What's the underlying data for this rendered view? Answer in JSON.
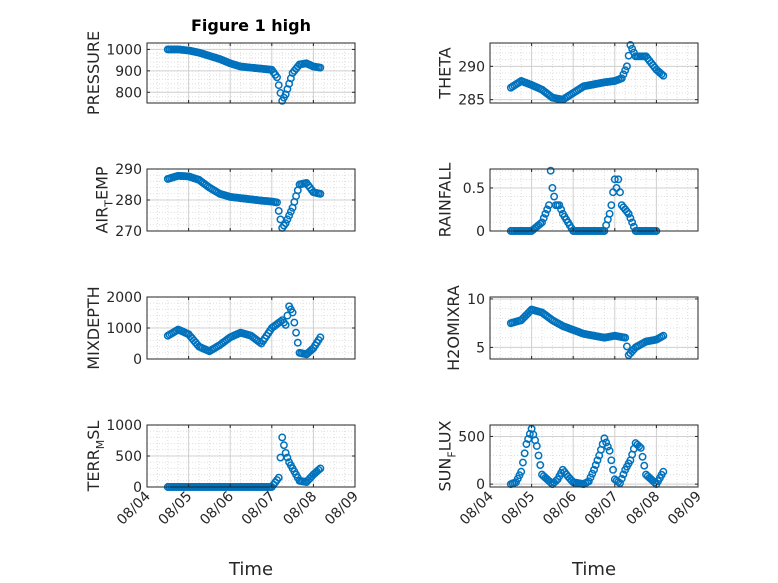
{
  "chart_data": [
    {
      "type": "scatter",
      "title": "Figure 1 high",
      "ylabel": "PRESSURE",
      "ylim": [
        750,
        1030
      ],
      "yticks": [
        800,
        900,
        1000
      ],
      "x": [
        "08/04 12:00",
        "08/04 18:00",
        "08/05 00:00",
        "08/05 06:00",
        "08/05 12:00",
        "08/05 18:00",
        "08/06 00:00",
        "08/06 06:00",
        "08/06 12:00",
        "08/06 18:00",
        "08/07 00:00",
        "08/07 03:00",
        "08/07 06:00",
        "08/07 08:00",
        "08/07 10:00",
        "08/07 12:00",
        "08/07 16:00",
        "08/07 20:00",
        "08/08 00:00",
        "08/08 04:00"
      ],
      "values": [
        1000,
        1000,
        995,
        985,
        970,
        955,
        935,
        920,
        915,
        910,
        905,
        870,
        760,
        790,
        840,
        890,
        930,
        935,
        920,
        915
      ]
    },
    {
      "type": "scatter",
      "title": "",
      "ylabel": "THETA",
      "ylim": [
        284.5,
        293.5
      ],
      "yticks": [
        285,
        290
      ],
      "x": [
        "08/04 12:00",
        "08/04 18:00",
        "08/05 00:00",
        "08/05 06:00",
        "08/05 12:00",
        "08/05 18:00",
        "08/06 00:00",
        "08/06 06:00",
        "08/06 12:00",
        "08/06 18:00",
        "08/07 00:00",
        "08/07 04:00",
        "08/07 07:00",
        "08/07 09:00",
        "08/07 12:00",
        "08/07 18:00",
        "08/08 00:00",
        "08/08 04:00"
      ],
      "values": [
        286.8,
        287.8,
        287.2,
        286.5,
        285.3,
        285.0,
        286.0,
        287.0,
        287.3,
        287.6,
        287.8,
        288.2,
        290.0,
        293.2,
        291.5,
        291.5,
        289.5,
        288.6
      ]
    },
    {
      "type": "scatter",
      "title": "",
      "ylabel": "AIR_TEMP",
      "ylim": [
        270,
        290
      ],
      "yticks": [
        270,
        280,
        290
      ],
      "x": [
        "08/04 12:00",
        "08/04 18:00",
        "08/05 00:00",
        "08/05 06:00",
        "08/05 12:00",
        "08/05 18:00",
        "08/06 00:00",
        "08/06 06:00",
        "08/06 12:00",
        "08/06 18:00",
        "08/07 00:00",
        "08/07 03:00",
        "08/07 06:00",
        "08/07 08:00",
        "08/07 12:00",
        "08/07 16:00",
        "08/07 20:00",
        "08/08 00:00",
        "08/08 04:00"
      ],
      "values": [
        286.8,
        287.8,
        287.6,
        286.5,
        284.0,
        282.0,
        281.0,
        280.6,
        280.2,
        279.8,
        279.5,
        279.2,
        271.0,
        272.5,
        277.5,
        285.0,
        285.5,
        282.5,
        282.0
      ]
    },
    {
      "type": "scatter",
      "title": "",
      "ylabel": "RAINFALL",
      "ylim": [
        0,
        0.72
      ],
      "yticks": [
        0,
        0.5
      ],
      "x": [
        "08/04 12:00",
        "08/05 00:00",
        "08/05 06:00",
        "08/05 08:00",
        "08/05 10:00",
        "08/05 11:00",
        "08/05 12:00",
        "08/05 14:00",
        "08/05 16:00",
        "08/05 18:00",
        "08/06 00:00",
        "08/06 18:00",
        "08/06 21:00",
        "08/06 22:00",
        "08/07 00:00",
        "08/07 01:00",
        "08/07 02:00",
        "08/07 04:00",
        "08/07 08:00",
        "08/07 12:00",
        "08/08 00:00"
      ],
      "values": [
        0,
        0,
        0.1,
        0.2,
        0.3,
        0.7,
        0.5,
        0.3,
        0.3,
        0.2,
        0,
        0,
        0.2,
        0.3,
        0.6,
        0.5,
        0.6,
        0.3,
        0.2,
        0,
        0
      ]
    },
    {
      "type": "scatter",
      "title": "",
      "ylabel": "MIXDEPTH",
      "ylim": [
        0,
        2000
      ],
      "yticks": [
        0,
        1000,
        2000
      ],
      "x": [
        "08/04 12:00",
        "08/04 18:00",
        "08/05 00:00",
        "08/05 06:00",
        "08/05 12:00",
        "08/05 18:00",
        "08/06 00:00",
        "08/06 06:00",
        "08/06 12:00",
        "08/06 18:00",
        "08/07 00:00",
        "08/07 06:00",
        "08/07 08:00",
        "08/07 10:00",
        "08/07 12:00",
        "08/07 16:00",
        "08/07 20:00",
        "08/08 00:00",
        "08/08 04:00"
      ],
      "values": [
        750,
        950,
        800,
        400,
        250,
        450,
        700,
        850,
        750,
        500,
        1000,
        1250,
        1100,
        1700,
        1500,
        200,
        150,
        350,
        700
      ]
    },
    {
      "type": "scatter",
      "title": "",
      "ylabel": "H2OMIXRA",
      "ylim": [
        3.8,
        10.2
      ],
      "yticks": [
        5,
        10
      ],
      "x": [
        "08/04 12:00",
        "08/04 18:00",
        "08/05 00:00",
        "08/05 06:00",
        "08/05 12:00",
        "08/05 18:00",
        "08/06 00:00",
        "08/06 06:00",
        "08/06 12:00",
        "08/06 18:00",
        "08/07 00:00",
        "08/07 06:00",
        "08/07 08:00",
        "08/07 12:00",
        "08/07 18:00",
        "08/08 00:00",
        "08/08 04:00"
      ],
      "values": [
        7.5,
        7.8,
        8.9,
        8.6,
        7.8,
        7.2,
        6.8,
        6.4,
        6.2,
        6.0,
        6.2,
        6.0,
        4.2,
        5.0,
        5.6,
        5.8,
        6.2
      ]
    },
    {
      "type": "scatter",
      "title": "",
      "ylabel": "TERR_MSL",
      "ylim": [
        0,
        1000
      ],
      "yticks": [
        0,
        500,
        1000
      ],
      "x": [
        "08/04 12:00",
        "08/05 00:00",
        "08/05 12:00",
        "08/06 00:00",
        "08/06 12:00",
        "08/07 00:00",
        "08/07 04:00",
        "08/07 06:00",
        "08/07 08:00",
        "08/07 10:00",
        "08/07 12:00",
        "08/07 16:00",
        "08/07 20:00",
        "08/08 00:00",
        "08/08 04:00"
      ],
      "values": [
        0,
        0,
        0,
        0,
        0,
        0,
        150,
        800,
        550,
        400,
        300,
        100,
        80,
        200,
        300
      ]
    },
    {
      "type": "scatter",
      "title": "",
      "ylabel": "SUN_FLUX",
      "ylim": [
        -30,
        620
      ],
      "yticks": [
        0,
        500
      ],
      "x": [
        "08/04 12:00",
        "08/04 15:00",
        "08/04 18:00",
        "08/04 21:00",
        "08/05 00:00",
        "08/05 03:00",
        "08/05 06:00",
        "08/05 12:00",
        "08/05 15:00",
        "08/05 18:00",
        "08/05 21:00",
        "08/06 00:00",
        "08/06 06:00",
        "08/06 09:00",
        "08/06 12:00",
        "08/06 15:00",
        "08/06 18:00",
        "08/06 21:00",
        "08/07 00:00",
        "08/07 03:00",
        "08/07 06:00",
        "08/07 09:00",
        "08/07 12:00",
        "08/07 15:00",
        "08/07 18:00",
        "08/08 00:00",
        "08/08 04:00"
      ],
      "values": [
        0,
        20,
        130,
        420,
        580,
        400,
        100,
        0,
        50,
        150,
        80,
        20,
        0,
        30,
        150,
        300,
        480,
        350,
        50,
        10,
        150,
        250,
        430,
        380,
        100,
        0,
        130
      ]
    }
  ],
  "x_axis": {
    "ticks": [
      "08/04",
      "08/05",
      "08/06",
      "08/07",
      "08/08",
      "08/09"
    ],
    "label": "Time"
  },
  "style": {
    "marker_color": "#0072bd",
    "axis_color": "#262626",
    "grid_color": "#dfdfdf"
  }
}
